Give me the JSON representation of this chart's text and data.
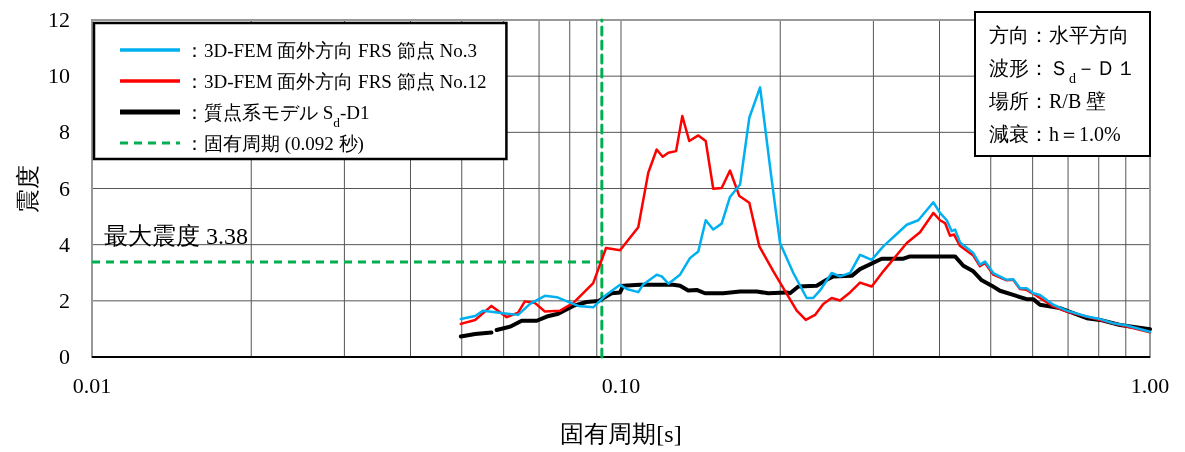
{
  "chart_data": {
    "type": "line",
    "xlabel": "固有周期[s]",
    "ylabel": "震度",
    "log": "x",
    "xlim": [
      0.01,
      1.0
    ],
    "xticks": [
      {
        "value": 0.01,
        "label": "0.01"
      },
      {
        "value": 0.1,
        "label": "0.10"
      },
      {
        "value": 1.0,
        "label": "1.00"
      }
    ],
    "ylim": [
      0,
      12
    ],
    "yticks": [
      0,
      2,
      4,
      6,
      8,
      10,
      12
    ],
    "grid": true,
    "legend": "top left",
    "series": [
      {
        "name": "：3D-FEM 面外方向 FRS 節点 No.3",
        "color": "#00b0f0",
        "x": [
          0.0498,
          0.053,
          0.0549,
          0.0599,
          0.0639,
          0.0673,
          0.0718,
          0.0756,
          0.083,
          0.0886,
          0.0933,
          0.0996,
          0.1025,
          0.1078,
          0.11,
          0.1168,
          0.1194,
          0.1229,
          0.1293,
          0.135,
          0.14,
          0.1446,
          0.1494,
          0.155,
          0.1607,
          0.1679,
          0.1748,
          0.1832,
          0.1921,
          0.1998,
          0.2117,
          0.2244,
          0.2309,
          0.2378,
          0.2502,
          0.2594,
          0.271,
          0.283,
          0.2978,
          0.3132,
          0.3469,
          0.3648,
          0.3894,
          0.4009,
          0.4128,
          0.4219,
          0.428,
          0.4374,
          0.4634,
          0.4771,
          0.4877,
          0.5056,
          0.5358,
          0.5514,
          0.5678,
          0.5845,
          0.6016,
          0.6194,
          0.6565,
          0.6959,
          0.7593,
          0.8045,
          0.8523,
          0.9036,
          1.0
        ],
        "values": [
          1.35,
          1.46,
          1.65,
          1.56,
          1.5,
          1.89,
          2.18,
          2.13,
          1.82,
          1.77,
          2.18,
          2.57,
          2.42,
          2.31,
          2.57,
          2.93,
          2.87,
          2.61,
          2.93,
          3.52,
          3.76,
          4.87,
          4.54,
          4.75,
          5.7,
          6.14,
          8.52,
          9.6,
          6.5,
          4.06,
          2.99,
          2.1,
          2.1,
          2.37,
          2.99,
          2.87,
          2.99,
          3.64,
          3.46,
          3.94,
          4.71,
          4.87,
          5.51,
          5.13,
          4.87,
          4.48,
          4.54,
          4.08,
          3.7,
          3.29,
          3.4,
          2.99,
          2.75,
          2.77,
          2.45,
          2.45,
          2.27,
          2.21,
          1.86,
          1.65,
          1.44,
          1.35,
          1.2,
          1.12,
          0.9
        ]
      },
      {
        "name": "：3D-FEM 面外方向 FRS 節点 No.12",
        "color": "#ff0000",
        "x": [
          0.0498,
          0.053,
          0.0569,
          0.0608,
          0.0639,
          0.0658,
          0.0688,
          0.0718,
          0.0767,
          0.0812,
          0.0886,
          0.0937,
          0.0996,
          0.1078,
          0.1126,
          0.1168,
          0.1199,
          0.1229,
          0.1271,
          0.1306,
          0.1346,
          0.14,
          0.1446,
          0.1494,
          0.155,
          0.1607,
          0.1674,
          0.1748,
          0.1826,
          0.1941,
          0.2072,
          0.2149,
          0.2235,
          0.2327,
          0.2412,
          0.2502,
          0.2594,
          0.271,
          0.283,
          0.2978,
          0.3132,
          0.3469,
          0.3675,
          0.3894,
          0.4009,
          0.4098,
          0.4188,
          0.4262,
          0.4374,
          0.4634,
          0.4771,
          0.4877,
          0.5056,
          0.5358,
          0.5514,
          0.5678,
          0.5845,
          0.6016,
          0.6565,
          0.6959,
          0.8045,
          1.0
        ],
        "values": [
          1.18,
          1.32,
          1.82,
          1.42,
          1.58,
          1.98,
          1.92,
          1.62,
          1.65,
          1.92,
          2.63,
          3.88,
          3.8,
          4.62,
          6.56,
          7.39,
          7.13,
          7.27,
          7.33,
          8.58,
          7.69,
          7.89,
          7.69,
          5.99,
          6.02,
          6.64,
          5.73,
          5.49,
          3.94,
          3.05,
          2.15,
          1.65,
          1.32,
          1.5,
          1.89,
          2.1,
          2.01,
          2.3,
          2.65,
          2.51,
          3.05,
          4.06,
          4.44,
          5.13,
          4.87,
          4.77,
          4.32,
          4.36,
          3.96,
          3.61,
          3.23,
          3.35,
          2.93,
          2.73,
          2.75,
          2.42,
          2.39,
          2.25,
          1.8,
          1.62,
          1.32,
          0.88
        ]
      },
      {
        "name": "：質点系モデル S$_{d}$-D1",
        "color": "#000000",
        "x": [
          0.0498,
          0.053,
          0.0569,
          0.0575,
          0.0582,
          0.0617,
          0.0649,
          0.0693,
          0.0724,
          0.0761,
          0.0812,
          0.0861,
          0.0906,
          0.096,
          0.0996,
          0.101,
          0.1086,
          0.1256,
          0.1293,
          0.134,
          0.139,
          0.1441,
          0.1561,
          0.1679,
          0.1805,
          0.1898,
          0.2057,
          0.2087,
          0.2164,
          0.2344,
          0.2448,
          0.2519,
          0.273,
          0.283,
          0.311,
          0.3418,
          0.3519,
          0.428,
          0.4438,
          0.4634,
          0.4808,
          0.5021,
          0.5204,
          0.5514,
          0.5845,
          0.6016,
          0.6194,
          0.676,
          0.7593,
          0.8045,
          0.8777,
          1.0
        ],
        "values": [
          0.73,
          0.82,
          0.87,
          null,
          0.96,
          1.08,
          1.29,
          1.29,
          1.44,
          1.54,
          1.82,
          1.96,
          1.99,
          2.27,
          2.3,
          2.54,
          2.57,
          2.57,
          2.54,
          2.37,
          2.39,
          2.27,
          2.27,
          2.33,
          2.33,
          2.27,
          2.3,
          2.27,
          2.51,
          2.54,
          2.75,
          2.87,
          2.89,
          3.13,
          3.5,
          3.5,
          3.58,
          3.58,
          3.25,
          3.05,
          2.73,
          2.54,
          2.36,
          2.21,
          2.06,
          2.06,
          1.86,
          1.74,
          1.38,
          1.32,
          1.14,
          0.99
        ]
      },
      {
        "name": "：固有周期 (0.092 秒)",
        "color": "#00b050",
        "line_style": "dashed",
        "x": [
          0.092,
          0.092
        ],
        "values": [
          0,
          12
        ]
      }
    ],
    "ref_lines": [
      {
        "axis": "y",
        "value": 3.38,
        "label": "最大震度 3.38",
        "color": "#00b050",
        "line_style": "dashed"
      }
    ],
    "annotations": [
      "方向：水平方向",
      "波形：Ｓ$_{d}$－Ｄ１",
      "場所：R/B 壁",
      "減衰：h＝1.0%"
    ]
  }
}
